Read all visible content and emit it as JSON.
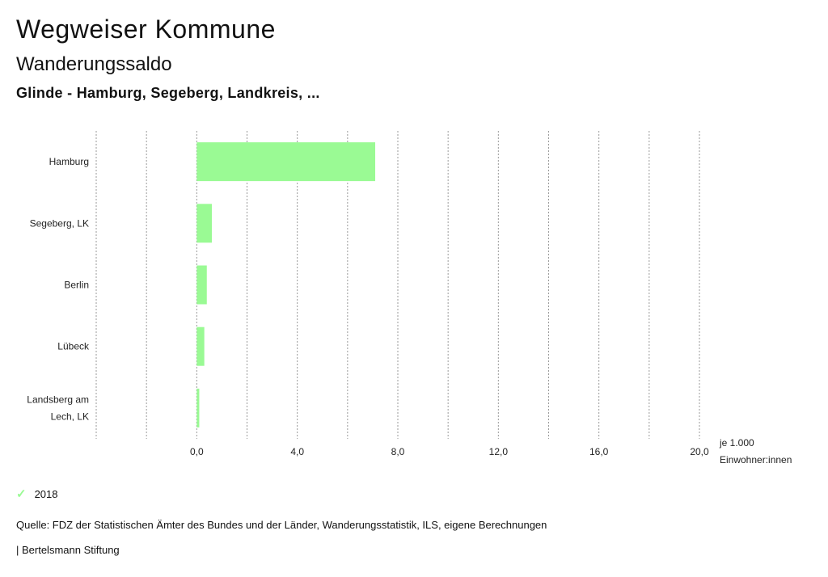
{
  "header": {
    "title": "Wegweiser Kommune",
    "subtitle": "Wanderungssaldo",
    "subsubtitle": "Glinde - Hamburg, Segeberg, Landkreis, ..."
  },
  "legend": {
    "items": [
      {
        "label": "2018",
        "icon": "check-icon",
        "color": "#9afa94"
      }
    ]
  },
  "footer": {
    "source": "Quelle: FDZ der Statistischen Ämter des Bundes und der Länder, Wanderungsstatistik, ILS, eigene Berechnungen",
    "brand": "| Bertelsmann Stiftung"
  },
  "chart_data": {
    "type": "bar",
    "orientation": "horizontal",
    "categories": [
      "Hamburg",
      "Segeberg, LK",
      "Berlin",
      "Lübeck",
      "Landsberg am Lech, LK"
    ],
    "series": [
      {
        "name": "2018",
        "values": [
          7.1,
          0.6,
          0.4,
          0.3,
          0.1
        ],
        "color": "#9afa94"
      }
    ],
    "xlim": [
      -4.0,
      20.0
    ],
    "xticks": [
      "0,0",
      "4,0",
      "8,0",
      "12,0",
      "16,0",
      "20,0"
    ],
    "xtick_values": [
      0,
      4,
      8,
      12,
      16,
      20
    ],
    "unit_label_lines": [
      "je 1.000",
      "Einwohner:innen"
    ],
    "grid": true
  }
}
